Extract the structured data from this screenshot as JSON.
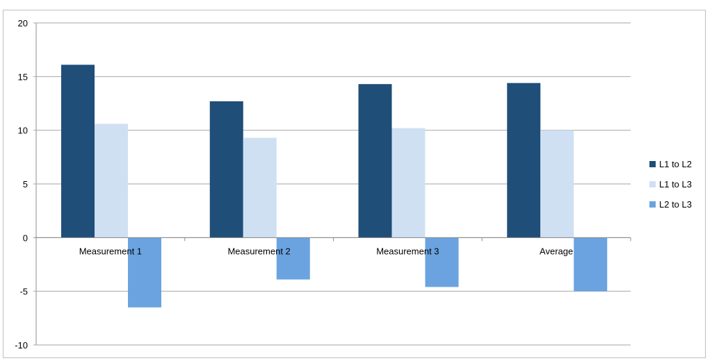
{
  "chart_data": {
    "type": "bar",
    "categories": [
      "Measurement 1",
      "Measurement 2",
      "Measurement 3",
      "Average"
    ],
    "series": [
      {
        "name": "L1 to L2",
        "color": "#1f4e79",
        "values": [
          16.1,
          12.7,
          14.3,
          14.4
        ]
      },
      {
        "name": "L1 to L3",
        "color": "#d0e0f3",
        "values": [
          10.6,
          9.3,
          10.2,
          10.0
        ]
      },
      {
        "name": "L2 to L3",
        "color": "#6aa3e0",
        "values": [
          -6.5,
          -3.9,
          -4.6,
          -5.0
        ]
      }
    ],
    "ylim": [
      -10,
      20
    ],
    "yticks": [
      20,
      15,
      10,
      5,
      0,
      -5,
      -10
    ],
    "grid": true,
    "legend": "right"
  }
}
